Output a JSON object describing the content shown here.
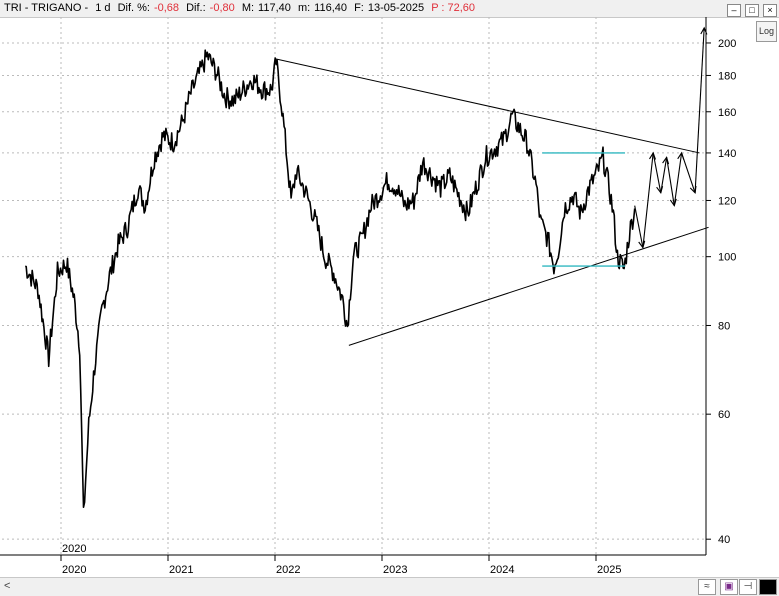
{
  "header": {
    "ticker": "TRI - TRIGANO -",
    "period": "1 d",
    "diff_pct_label": "Dif. %:",
    "diff_pct_value": "-0,68",
    "diff_label": "Dif.:",
    "diff_value": "-0,80",
    "max_label": "M:",
    "max_value": "117,40",
    "min_label": "m:",
    "min_value": "116,40",
    "date_label": "F:",
    "date_value": "13-05-2025",
    "p_label": "P : 72,60"
  },
  "controls": {
    "log_label": "Log"
  },
  "colors": {
    "accent_negative": "#e0303a",
    "support_lines": "#30b8c0",
    "grid": "#bbbbbb"
  },
  "chart_data": {
    "type": "line",
    "scale": "log",
    "ylim": [
      38,
      212
    ],
    "y_ticks": [
      40,
      60,
      80,
      100,
      120,
      140,
      160,
      180,
      200
    ],
    "x_ticks": [
      "2020",
      "2021",
      "2022",
      "2023",
      "2024",
      "2025"
    ],
    "x_extra_label": "2020",
    "grid": true,
    "series": [
      {
        "values": [
          [
            "2019-09-01",
            97
          ],
          [
            "2019-10-15",
            90
          ],
          [
            "2019-11-20",
            72
          ],
          [
            "2019-12-20",
            95
          ],
          [
            "2020-01-20",
            98
          ],
          [
            "2020-02-15",
            87
          ],
          [
            "2020-03-05",
            75
          ],
          [
            "2020-03-18",
            43
          ],
          [
            "2020-04-05",
            58
          ],
          [
            "2020-04-25",
            70
          ],
          [
            "2020-05-20",
            84
          ],
          [
            "2020-06-15",
            94
          ],
          [
            "2020-07-15",
            104
          ],
          [
            "2020-08-15",
            110
          ],
          [
            "2020-09-20",
            125
          ],
          [
            "2020-10-15",
            118
          ],
          [
            "2020-11-15",
            138
          ],
          [
            "2020-12-15",
            148
          ],
          [
            "2021-01-20",
            145
          ],
          [
            "2021-02-20",
            155
          ],
          [
            "2021-03-20",
            170
          ],
          [
            "2021-05-15",
            192
          ],
          [
            "2021-06-15",
            182
          ],
          [
            "2021-07-15",
            168
          ],
          [
            "2021-08-15",
            166
          ],
          [
            "2021-09-15",
            172
          ],
          [
            "2021-10-15",
            178
          ],
          [
            "2021-11-20",
            172
          ],
          [
            "2021-12-20",
            172
          ],
          [
            "2022-01-05",
            188
          ],
          [
            "2022-01-25",
            162
          ],
          [
            "2022-02-25",
            120
          ],
          [
            "2022-03-15",
            132
          ],
          [
            "2022-04-20",
            122
          ],
          [
            "2022-05-20",
            112
          ],
          [
            "2022-06-20",
            100
          ],
          [
            "2022-07-20",
            95
          ],
          [
            "2022-08-20",
            87
          ],
          [
            "2022-09-05",
            80
          ],
          [
            "2022-09-25",
            100
          ],
          [
            "2022-10-25",
            106
          ],
          [
            "2022-11-25",
            118
          ],
          [
            "2022-12-20",
            122
          ],
          [
            "2023-01-20",
            128
          ],
          [
            "2023-02-20",
            125
          ],
          [
            "2023-03-20",
            118
          ],
          [
            "2023-04-20",
            120
          ],
          [
            "2023-05-20",
            136
          ],
          [
            "2023-06-20",
            130
          ],
          [
            "2023-07-20",
            125
          ],
          [
            "2023-08-20",
            130
          ],
          [
            "2023-09-20",
            122
          ],
          [
            "2023-10-20",
            115
          ],
          [
            "2023-11-20",
            126
          ],
          [
            "2023-12-20",
            138
          ],
          [
            "2024-01-20",
            142
          ],
          [
            "2024-02-20",
            146
          ],
          [
            "2024-03-20",
            158
          ],
          [
            "2024-04-20",
            150
          ],
          [
            "2024-05-10",
            145
          ],
          [
            "2024-06-10",
            126
          ],
          [
            "2024-06-25",
            112
          ],
          [
            "2024-07-20",
            106
          ],
          [
            "2024-08-10",
            97
          ],
          [
            "2024-08-25",
            102
          ],
          [
            "2024-09-15",
            117
          ],
          [
            "2024-10-15",
            122
          ],
          [
            "2024-11-10",
            115
          ],
          [
            "2024-12-05",
            124
          ],
          [
            "2025-01-10",
            133
          ],
          [
            "2025-01-25",
            138
          ],
          [
            "2025-02-15",
            125
          ],
          [
            "2025-03-01",
            115
          ],
          [
            "2025-03-15",
            100
          ],
          [
            "2025-04-07",
            96
          ],
          [
            "2025-04-25",
            108
          ],
          [
            "2025-05-13",
            116.9
          ]
        ]
      }
    ],
    "trendlines": [
      {
        "kind": "resistance",
        "points": [
          [
            "2022-01-01",
            190
          ],
          [
            "2025-12-20",
            140
          ]
        ]
      },
      {
        "kind": "support",
        "points": [
          [
            "2022-09-10",
            75
          ],
          [
            "2026-01-20",
            110
          ]
        ]
      },
      {
        "kind": "range_top",
        "points": [
          [
            "2024-07-01",
            140
          ],
          [
            "2025-04-10",
            140
          ]
        ]
      },
      {
        "kind": "range_bottom",
        "points": [
          [
            "2024-07-01",
            97
          ],
          [
            "2025-04-10",
            97
          ]
        ]
      }
    ],
    "projection": [
      [
        "2025-05-13",
        118
      ],
      [
        "2025-06-10",
        103
      ],
      [
        "2025-07-15",
        140
      ],
      [
        "2025-08-10",
        123
      ],
      [
        "2025-08-30",
        138
      ],
      [
        "2025-09-25",
        118
      ],
      [
        "2025-10-20",
        140
      ],
      [
        "2025-12-05",
        123
      ],
      [
        "2026-01-05",
        210
      ]
    ]
  }
}
